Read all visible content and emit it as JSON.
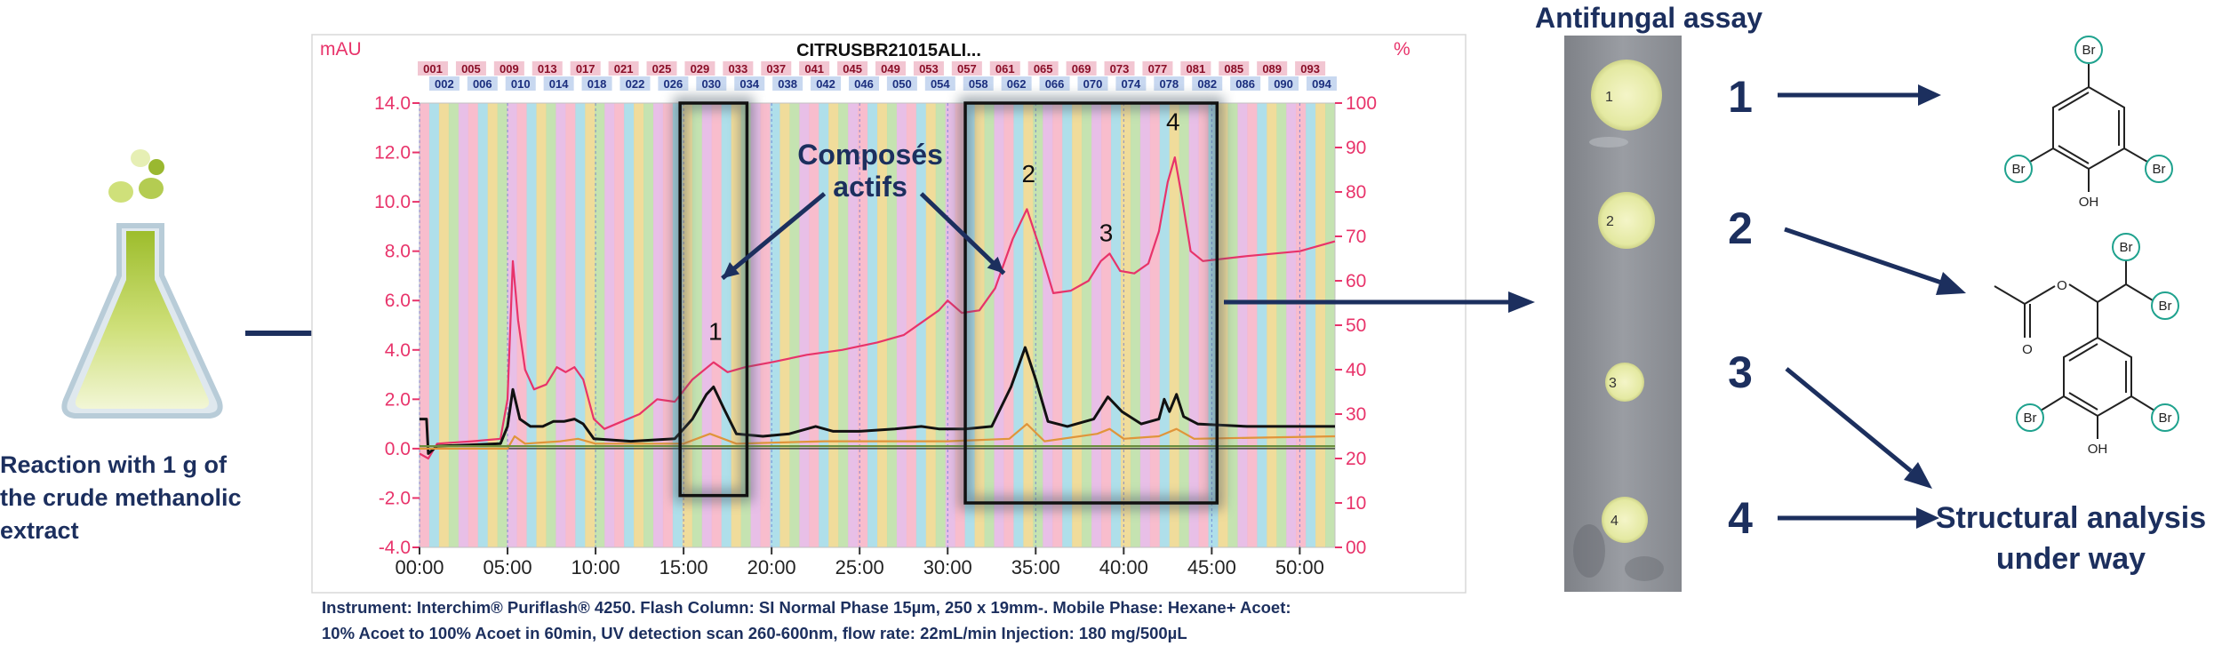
{
  "reaction_caption": "Reaction with 1 g of the crude methanolic extract",
  "instrument_caption": "Instrument: Interchim® Puriflash® 4250. Flash Column: SI Normal Phase 15µm, 250 x 19mm-. Mobile Phase: Hexane+ Acoet:\n10% Acoet to 100% Acoet in 60min, UV detection scan 260-600nm, flow rate: 22mL/min Injection: 180 mg/500µL",
  "assay_title": "Antifungal assay",
  "structural_caption": "Structural analysis\nunder way",
  "assay_spots": [
    "1",
    "2",
    "3",
    "4"
  ],
  "peak_list": [
    "1",
    "2",
    "3",
    "4"
  ],
  "structure": {
    "br": "Br",
    "oh": "OH"
  },
  "colors": {
    "navy": "#1c2f5e",
    "pink": "#e8336a",
    "teal": "#1fa28e",
    "flask_green": "#a8c83c"
  },
  "chart_data": {
    "type": "line",
    "title": "CITRUSBR21015ALI...",
    "left_unit": "mAU",
    "right_unit": "%",
    "x_ticks": [
      "00:00",
      "05:00",
      "10:00",
      "15:00",
      "20:00",
      "25:00",
      "30:00",
      "35:00",
      "40:00",
      "45:00",
      "50:00"
    ],
    "x_range_min": [
      0,
      52
    ],
    "y_left_ticks": [
      "14.0",
      "12.0",
      "10.0",
      "8.0",
      "6.0",
      "4.0",
      "2.0",
      "0.0",
      "-2.0",
      "-4.0"
    ],
    "y_left_range": [
      -4,
      14
    ],
    "y_right_ticks": [
      "100",
      "90",
      "80",
      "70",
      "60",
      "50",
      "40",
      "30",
      "20",
      "10",
      "00"
    ],
    "y_right_range": [
      0,
      100
    ],
    "fractions_top": [
      "001",
      "005",
      "009",
      "013",
      "017",
      "021",
      "025",
      "029",
      "033",
      "037",
      "041",
      "045",
      "049",
      "053",
      "057",
      "061",
      "065",
      "069",
      "073",
      "077",
      "081",
      "085",
      "089",
      "093"
    ],
    "fractions_bottom": [
      "002",
      "006",
      "010",
      "014",
      "018",
      "022",
      "026",
      "030",
      "034",
      "038",
      "042",
      "046",
      "050",
      "054",
      "058",
      "062",
      "066",
      "070",
      "074",
      "078",
      "082",
      "086",
      "090",
      "094"
    ],
    "annotation_label": "Composés\nactifs",
    "peak_labels": [
      {
        "label": "1",
        "x": 16.8,
        "y": 4.4
      },
      {
        "label": "2",
        "x": 34.6,
        "y": 10.8
      },
      {
        "label": "3",
        "x": 39.0,
        "y": 8.4
      },
      {
        "label": "4",
        "x": 42.8,
        "y": 12.9
      }
    ],
    "series": [
      {
        "color": "#e8336a",
        "points": [
          [
            0,
            -0.2
          ],
          [
            0.5,
            -0.4
          ],
          [
            1,
            0.2
          ],
          [
            3,
            0.3
          ],
          [
            4.6,
            0.4
          ],
          [
            5.0,
            2.0
          ],
          [
            5.3,
            7.6
          ],
          [
            5.6,
            5.2
          ],
          [
            6.0,
            3.2
          ],
          [
            6.5,
            2.4
          ],
          [
            7.2,
            2.6
          ],
          [
            7.8,
            3.3
          ],
          [
            8.3,
            3.1
          ],
          [
            8.8,
            3.3
          ],
          [
            9.3,
            2.8
          ],
          [
            9.9,
            1.2
          ],
          [
            10.5,
            0.8
          ],
          [
            11.5,
            1.1
          ],
          [
            12.5,
            1.4
          ],
          [
            13.5,
            2.0
          ],
          [
            14.5,
            1.9
          ],
          [
            15.5,
            2.8
          ],
          [
            16.7,
            3.5
          ],
          [
            17.5,
            3.1
          ],
          [
            18.5,
            3.3
          ],
          [
            20,
            3.5
          ],
          [
            22,
            3.8
          ],
          [
            24,
            4.0
          ],
          [
            26,
            4.3
          ],
          [
            27.5,
            4.6
          ],
          [
            28.5,
            5.1
          ],
          [
            29.5,
            5.6
          ],
          [
            30,
            6.0
          ],
          [
            30.8,
            5.5
          ],
          [
            31.8,
            5.6
          ],
          [
            32.7,
            6.5
          ],
          [
            33.7,
            8.5
          ],
          [
            34.5,
            9.7
          ],
          [
            35.2,
            8.2
          ],
          [
            36,
            6.3
          ],
          [
            37,
            6.4
          ],
          [
            38,
            6.8
          ],
          [
            38.7,
            7.6
          ],
          [
            39.2,
            7.9
          ],
          [
            39.8,
            7.2
          ],
          [
            40.6,
            7.1
          ],
          [
            41.4,
            7.5
          ],
          [
            42.0,
            8.8
          ],
          [
            42.5,
            10.8
          ],
          [
            42.9,
            11.8
          ],
          [
            43.3,
            10.2
          ],
          [
            43.8,
            8.0
          ],
          [
            44.5,
            7.6
          ],
          [
            47,
            7.8
          ],
          [
            50,
            8.0
          ],
          [
            52,
            8.4
          ]
        ]
      },
      {
        "color": "#111111",
        "points": [
          [
            0,
            1.2
          ],
          [
            0.4,
            1.2
          ],
          [
            0.5,
            -0.2
          ],
          [
            1,
            0.1
          ],
          [
            4.6,
            0.2
          ],
          [
            5.0,
            0.9
          ],
          [
            5.3,
            2.4
          ],
          [
            5.7,
            1.2
          ],
          [
            6.3,
            0.9
          ],
          [
            7,
            0.9
          ],
          [
            7.6,
            1.1
          ],
          [
            8.2,
            1.1
          ],
          [
            8.8,
            1.2
          ],
          [
            9.3,
            1.0
          ],
          [
            9.9,
            0.4
          ],
          [
            12,
            0.3
          ],
          [
            14.5,
            0.4
          ],
          [
            15.5,
            1.2
          ],
          [
            16.3,
            2.2
          ],
          [
            16.7,
            2.5
          ],
          [
            17.3,
            1.6
          ],
          [
            18,
            0.6
          ],
          [
            19.5,
            0.5
          ],
          [
            21,
            0.6
          ],
          [
            22.5,
            0.9
          ],
          [
            23.5,
            0.7
          ],
          [
            25,
            0.7
          ],
          [
            27,
            0.8
          ],
          [
            28.5,
            0.9
          ],
          [
            29.5,
            0.8
          ],
          [
            31,
            0.8
          ],
          [
            32.5,
            0.9
          ],
          [
            33.6,
            2.5
          ],
          [
            34.4,
            4.1
          ],
          [
            35.0,
            2.8
          ],
          [
            35.7,
            1.1
          ],
          [
            36.8,
            0.9
          ],
          [
            38.3,
            1.2
          ],
          [
            39.1,
            2.1
          ],
          [
            39.9,
            1.5
          ],
          [
            41,
            1.0
          ],
          [
            42.0,
            1.2
          ],
          [
            42.3,
            2.0
          ],
          [
            42.6,
            1.5
          ],
          [
            43,
            2.2
          ],
          [
            43.4,
            1.3
          ],
          [
            44.2,
            1.0
          ],
          [
            47,
            0.9
          ],
          [
            52,
            0.9
          ]
        ]
      },
      {
        "color": "#e0953a",
        "points": [
          [
            0,
            0.0
          ],
          [
            5,
            0.0
          ],
          [
            5.4,
            0.5
          ],
          [
            6,
            0.2
          ],
          [
            8,
            0.3
          ],
          [
            9,
            0.4
          ],
          [
            10,
            0.2
          ],
          [
            15,
            0.2
          ],
          [
            16.5,
            0.6
          ],
          [
            18,
            0.2
          ],
          [
            23,
            0.3
          ],
          [
            30,
            0.3
          ],
          [
            33.5,
            0.4
          ],
          [
            34.5,
            1.0
          ],
          [
            35.5,
            0.3
          ],
          [
            38.5,
            0.6
          ],
          [
            39.2,
            0.8
          ],
          [
            40,
            0.4
          ],
          [
            42,
            0.5
          ],
          [
            43,
            0.8
          ],
          [
            44,
            0.4
          ],
          [
            52,
            0.5
          ]
        ]
      },
      {
        "color": "#6b8f3e",
        "points": [
          [
            0,
            0.1
          ],
          [
            52,
            0.1
          ]
        ]
      }
    ]
  }
}
